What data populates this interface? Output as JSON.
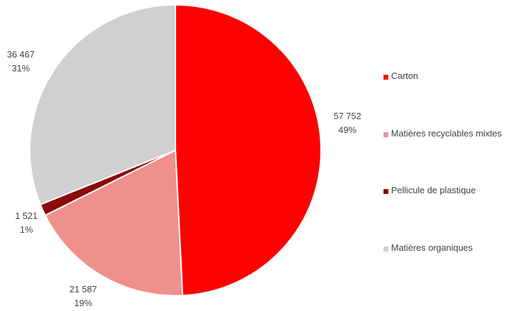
{
  "chart_data": {
    "type": "pie",
    "title": "",
    "slices": [
      {
        "label": "Carton",
        "value": 57752,
        "value_text": "57 752",
        "percent_text": "49%",
        "color": "#ff0000"
      },
      {
        "label": "Matières recyclables mixtes",
        "value": 21587,
        "value_text": "21 587",
        "percent_text": "19%",
        "color": "#f0908a"
      },
      {
        "label": "Pellicule de plastique",
        "value": 1521,
        "value_text": "1 521",
        "percent_text": "1%",
        "color": "#8b0a0a"
      },
      {
        "label": "Matières organiques",
        "value": 36467,
        "value_text": "36 467",
        "percent_text": "31%",
        "color": "#d0cfd1"
      }
    ],
    "legend_position": "right"
  }
}
